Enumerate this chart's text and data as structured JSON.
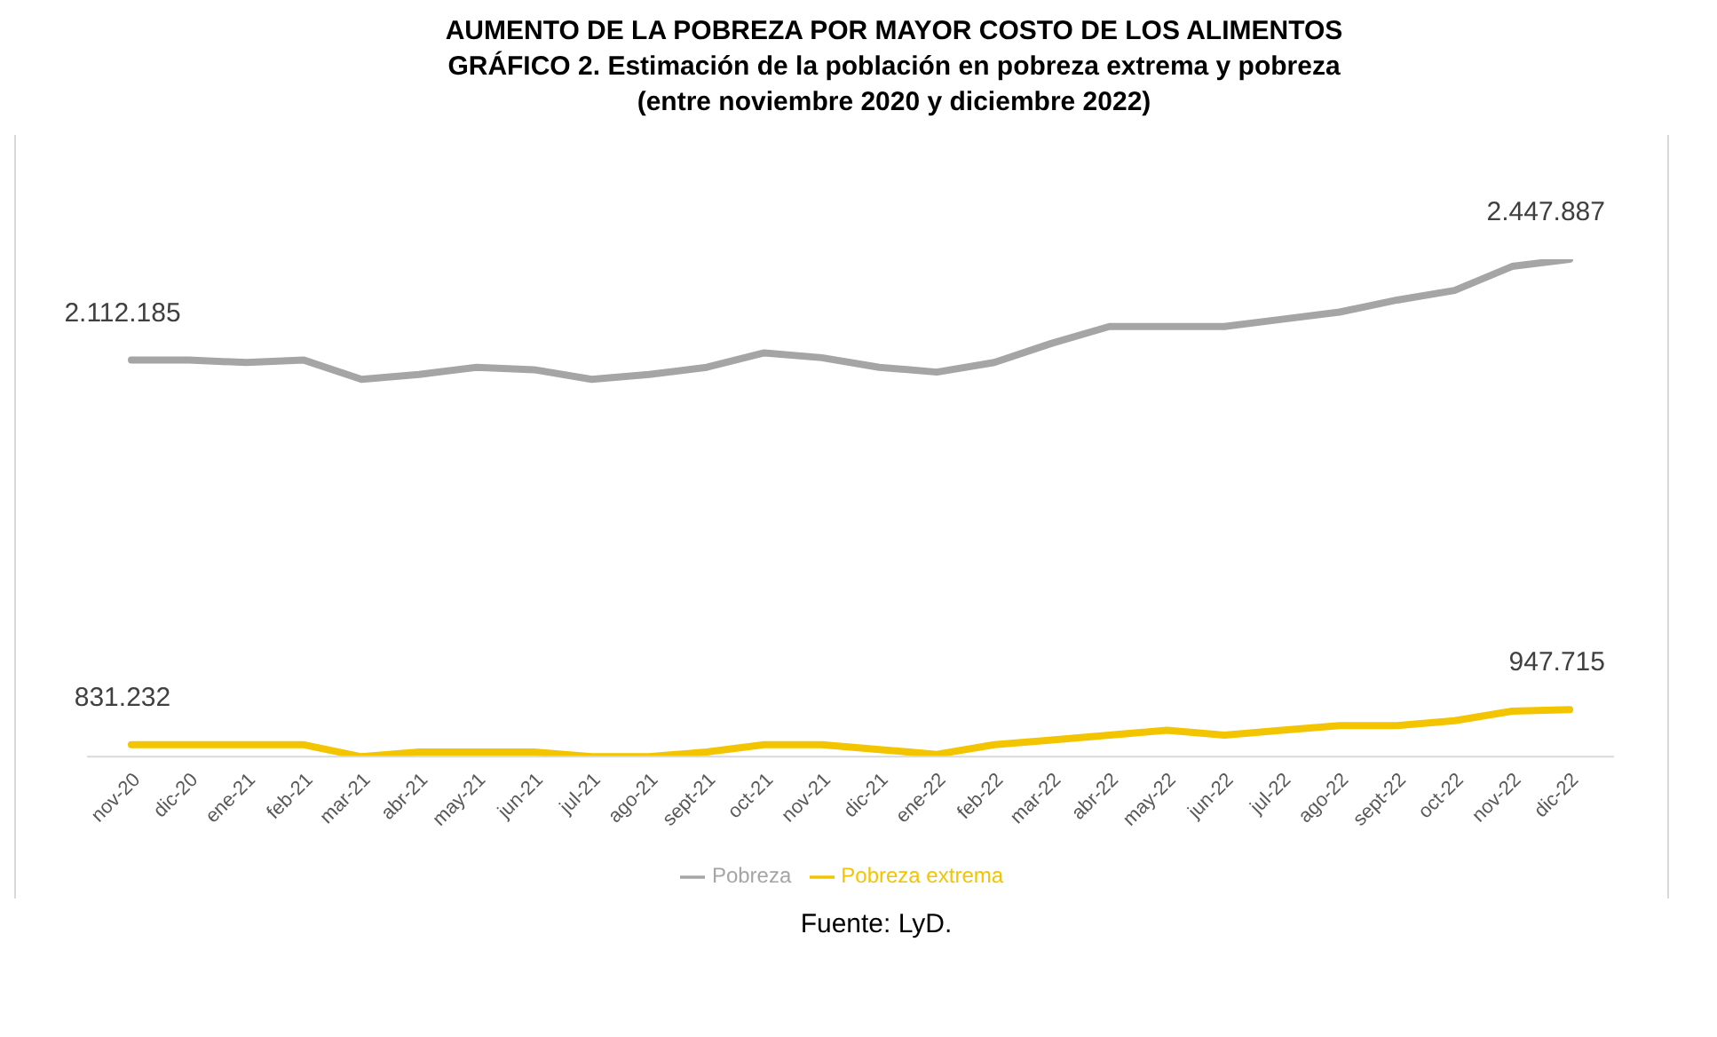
{
  "chart_data": {
    "type": "line",
    "title": "AUMENTO DE LA POBREZA POR MAYOR COSTO DE LOS ALIMENTOS",
    "subtitle": "GRÁFICO 2. Estimación de la población en pobreza extrema y pobreza\n(entre noviembre 2020 y diciembre 2022)",
    "annotations": [
      "Fuente: LyD."
    ],
    "categories": [
      "nov-20",
      "dic-20",
      "ene-21",
      "feb-21",
      "mar-21",
      "abr-21",
      "may-21",
      "jun-21",
      "jul-21",
      "ago-21",
      "sept-21",
      "oct-21",
      "nov-21",
      "dic-21",
      "ene-22",
      "feb-22",
      "mar-22",
      "abr-22",
      "may-22",
      "jun-22",
      "jul-22",
      "ago-22",
      "sept-22",
      "oct-22",
      "nov-22",
      "dic-22"
    ],
    "series": [
      {
        "name": "Pobreza",
        "color": "#a5a5a5",
        "values": [
          2112185,
          2112000,
          2104000,
          2112000,
          2048000,
          2064000,
          2088000,
          2080000,
          2048000,
          2064000,
          2088000,
          2136000,
          2120000,
          2088000,
          2072000,
          2104000,
          2168000,
          2224000,
          2224000,
          2224000,
          2248000,
          2272000,
          2312000,
          2344000,
          2424000,
          2447887
        ],
        "value_labels": [
          "2.112.185",
          null,
          null,
          null,
          null,
          null,
          null,
          null,
          null,
          null,
          null,
          null,
          null,
          null,
          null,
          null,
          null,
          null,
          null,
          null,
          null,
          null,
          null,
          null,
          null,
          "2.447.887"
        ]
      },
      {
        "name": "Pobreza extrema",
        "color": "#f2c500",
        "values": [
          831232,
          831000,
          831000,
          831000,
          791000,
          807000,
          807000,
          807000,
          791000,
          791000,
          807000,
          831000,
          831000,
          815000,
          799000,
          831000,
          847000,
          863000,
          879000,
          863000,
          879000,
          895000,
          895000,
          911000,
          943000,
          947715
        ],
        "value_labels": [
          "831.232",
          null,
          null,
          null,
          null,
          null,
          null,
          null,
          null,
          null,
          null,
          null,
          null,
          null,
          null,
          null,
          null,
          null,
          null,
          null,
          null,
          null,
          null,
          null,
          null,
          "947.715"
        ]
      }
    ],
    "tick_labels": "x",
    "grid": false,
    "legend": "bottom",
    "marker": "none",
    "line_style": "solid"
  }
}
